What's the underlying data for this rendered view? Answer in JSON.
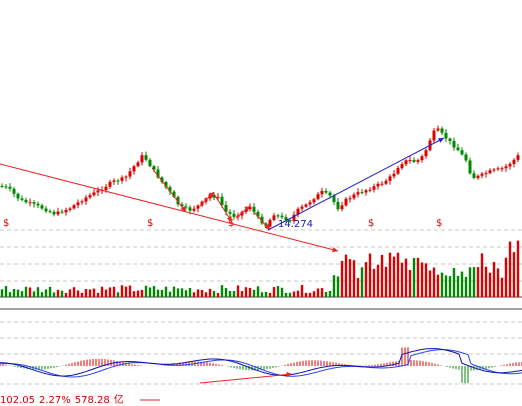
{
  "chart": {
    "low_price_label": "14.274",
    "event_marker_glyph": "$",
    "event_markers": 5,
    "readout": {
      "price": "102.05",
      "change_pct": "2.27%",
      "amount": "578.28",
      "suffix": "亿"
    }
  },
  "colors": {
    "up": "#dd0000",
    "down": "#008800",
    "trend_down": "#ee2222",
    "trend_up": "#2222cc",
    "macd_fast": "#1111aa",
    "macd_slow": "#2244ee",
    "grid": "#c8c8c8",
    "axis": "#444444"
  }
}
